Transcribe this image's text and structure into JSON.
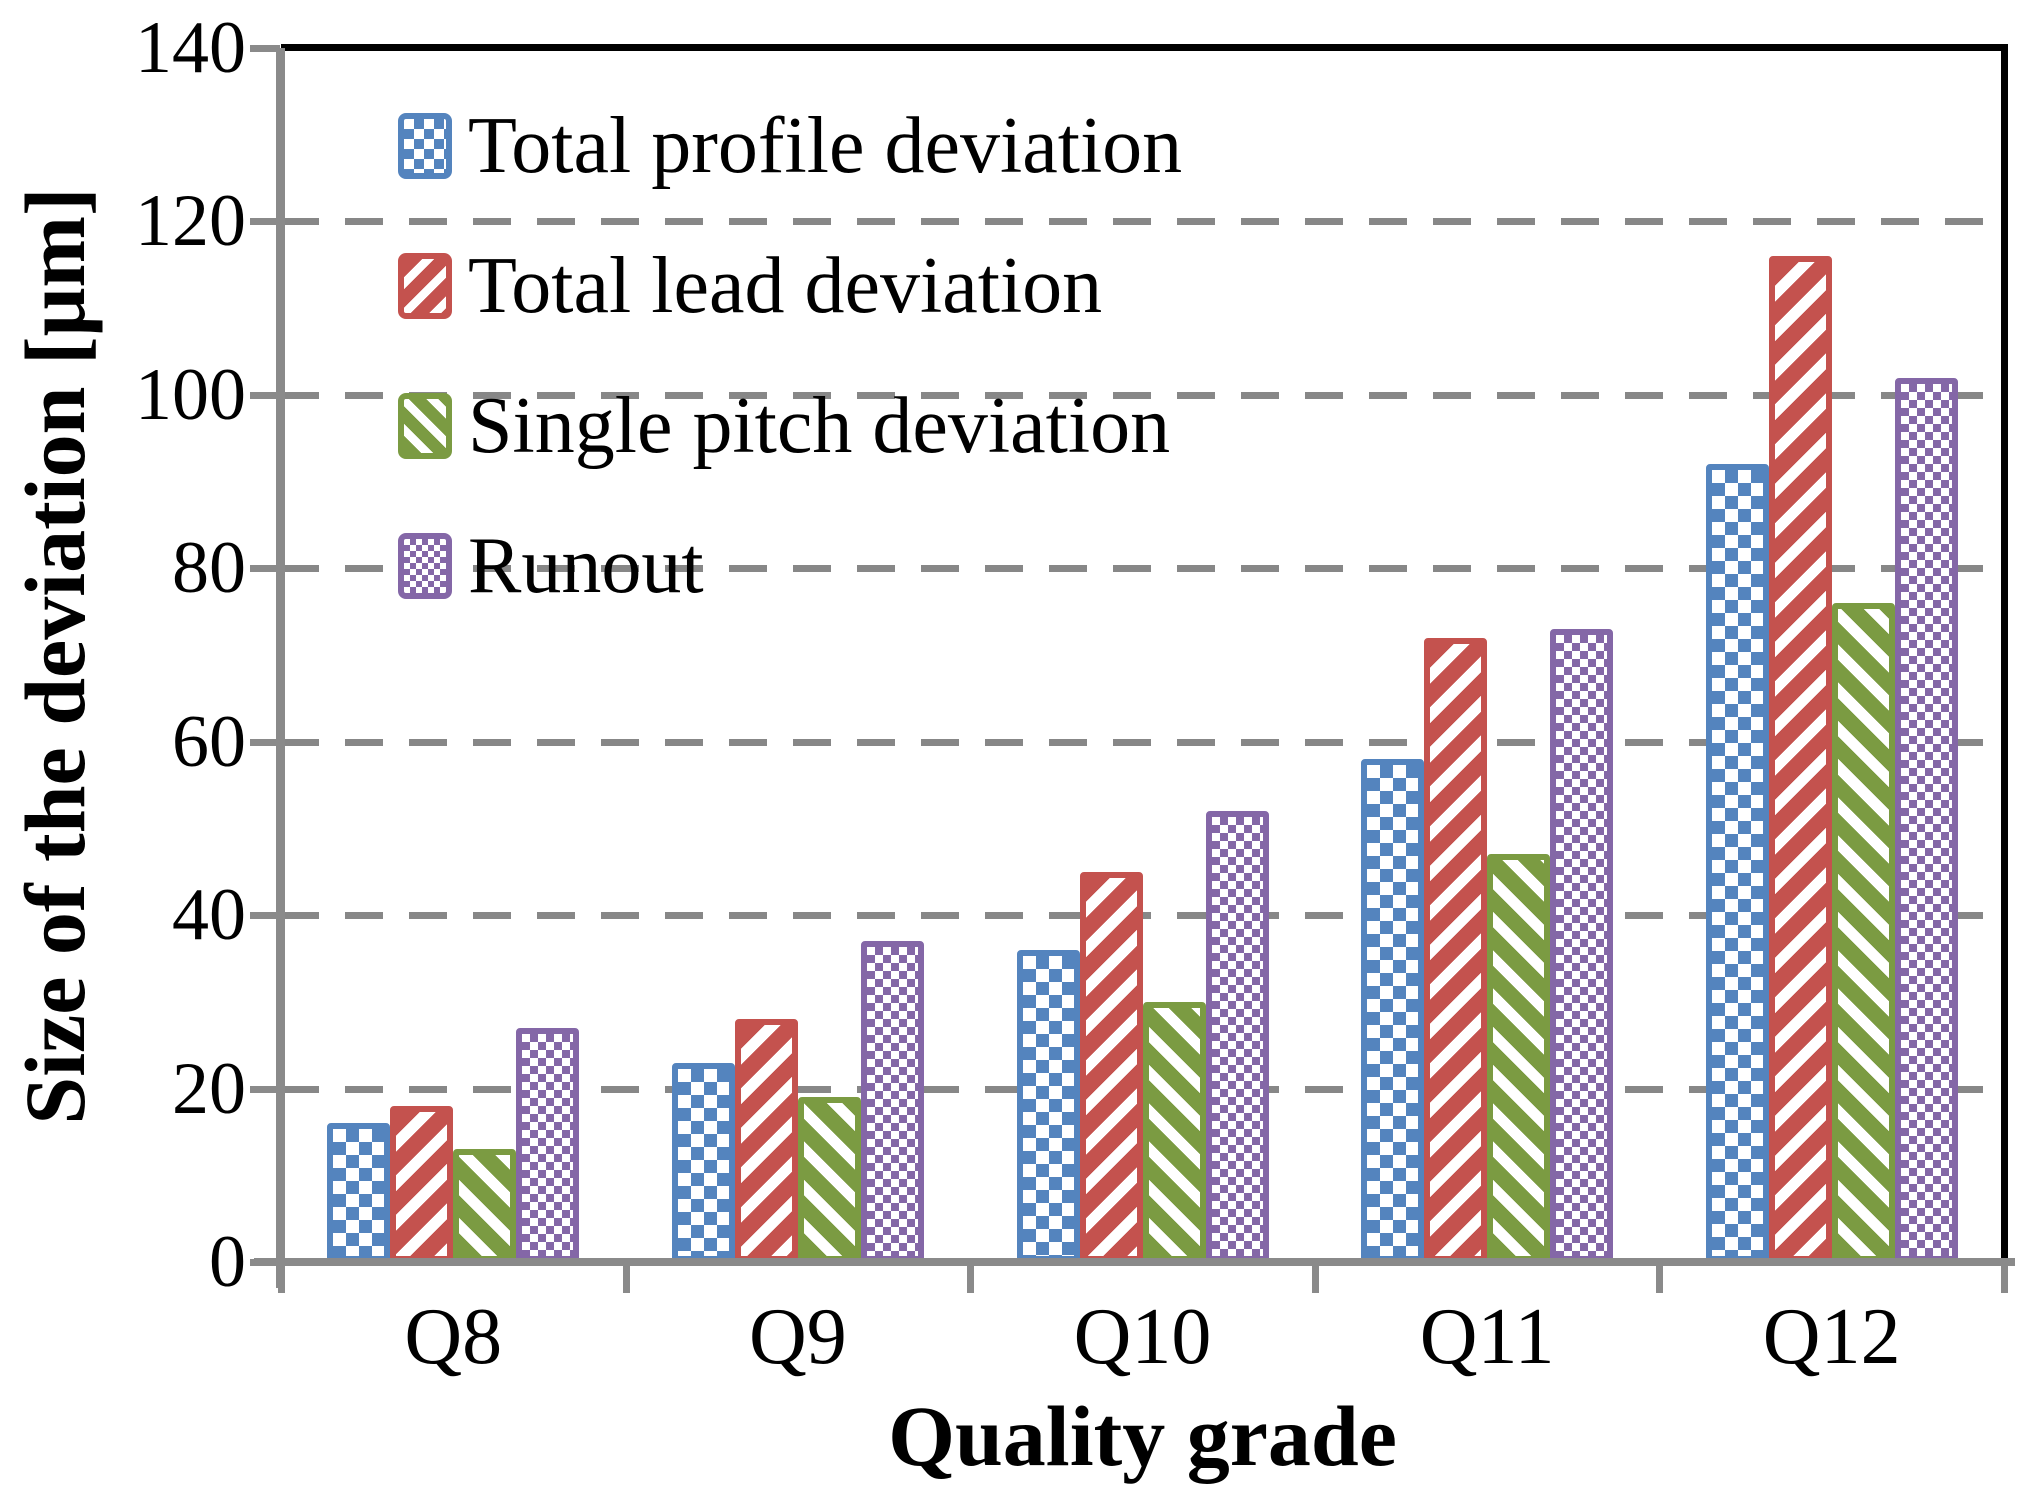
{
  "figure": {
    "kind": "grouped bar chart",
    "background": "#ffffff"
  },
  "y_axis": {
    "title": "Size of the deviation [μm]",
    "min": 0,
    "max": 140,
    "tick_step": 20,
    "tick_labels": [
      "0",
      "20",
      "40",
      "60",
      "80",
      "100",
      "120",
      "140"
    ]
  },
  "x_axis": {
    "title": "Quality grade",
    "tick_labels": [
      "Q8",
      "Q9",
      "Q10",
      "Q11",
      "Q12"
    ]
  },
  "colors": {
    "axis_gray": "#8a8a8a",
    "grid_gray": "#878787",
    "frame_black": "#000000",
    "series_blue": "#5484be",
    "series_red": "#c4524e",
    "series_green": "#7b9b42",
    "series_purple": "#8467a7"
  },
  "chart_data": {
    "type": "bar",
    "title": "",
    "xlabel": "Quality grade",
    "ylabel": "Size of the deviation [μm]",
    "categories": [
      "Q8",
      "Q9",
      "Q10",
      "Q11",
      "Q12"
    ],
    "series": [
      {
        "name": "Total profile deviation",
        "values": [
          16,
          23,
          36,
          58,
          92
        ],
        "color": "#5484be",
        "pattern": "checker"
      },
      {
        "name": "Total lead deviation",
        "values": [
          18,
          28,
          45,
          72,
          116
        ],
        "color": "#c4524e",
        "pattern": "stripe-up"
      },
      {
        "name": "Single pitch deviation",
        "values": [
          13,
          19,
          30,
          47,
          76
        ],
        "color": "#7b9b42",
        "pattern": "stripe-down"
      },
      {
        "name": "Runout",
        "values": [
          27,
          37,
          52,
          73,
          102
        ],
        "color": "#8467a7",
        "pattern": "checker-fine"
      }
    ],
    "ylim": [
      0,
      140
    ],
    "grid": "horizontal dashed gray every 20, solid black frame top and right",
    "legend_position": "top-left inside plot area"
  }
}
